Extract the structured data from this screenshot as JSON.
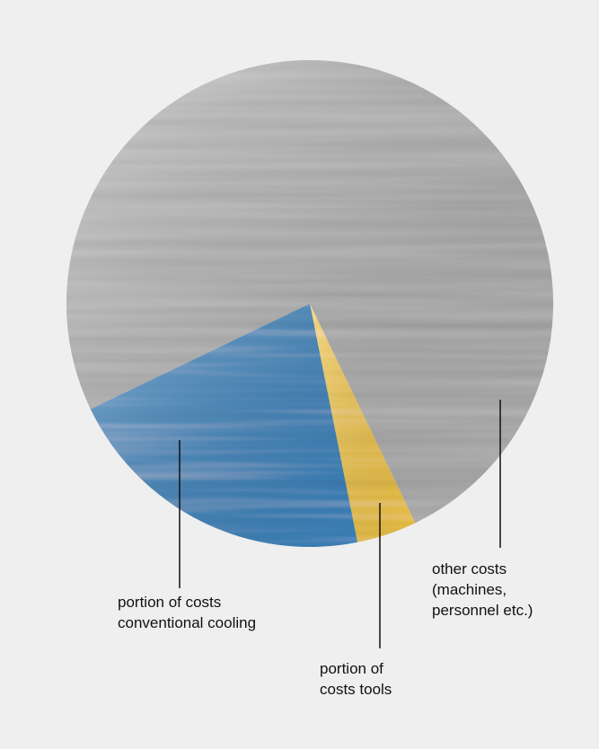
{
  "chart_data": {
    "type": "pie",
    "categories": [
      "portion of costs tools",
      "portion of costs conventional cooling",
      "other costs (machines, personnel etc.)"
    ],
    "values": [
      4,
      21,
      75
    ],
    "colors": [
      "#f6c94a",
      "#3f86c0",
      "#b4b4b4"
    ]
  }
}
